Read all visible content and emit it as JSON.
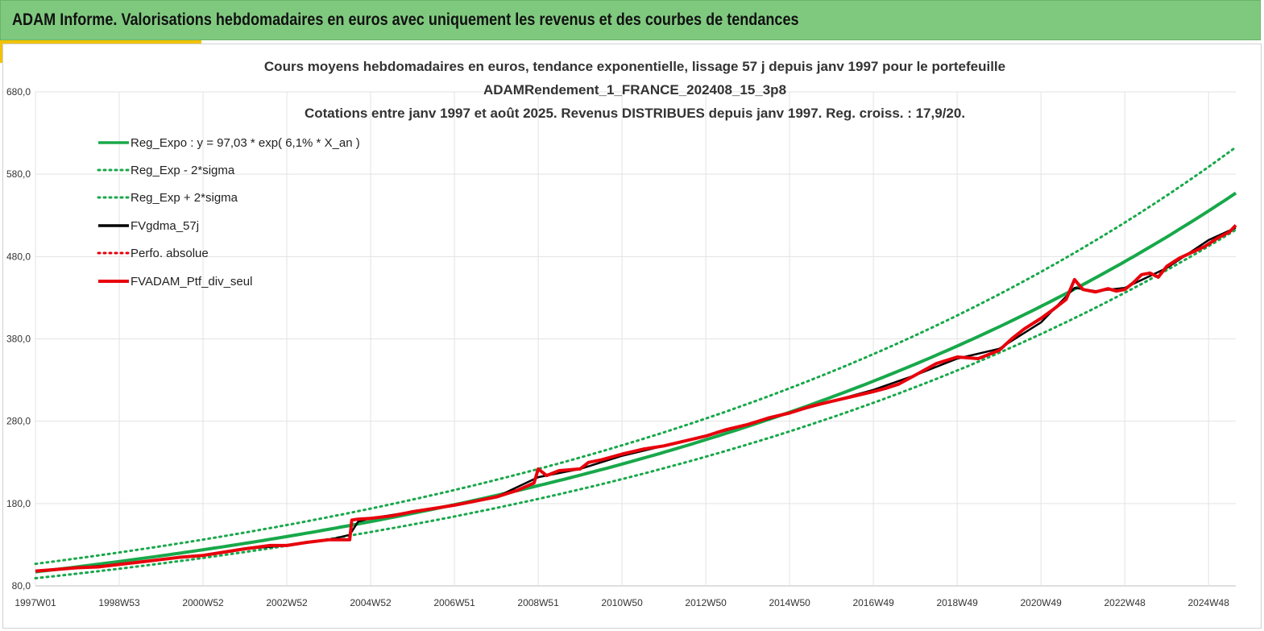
{
  "header": {
    "title": "ADAM Informe. Valorisations hebdomadaires en euros avec uniquement les revenus et des courbes de tendances"
  },
  "colors": {
    "banner": "#7fc97f",
    "accent": "#f2c200",
    "reg_green": "#18a84a",
    "black": "#000000",
    "red": "#e8000b"
  },
  "chart_data": {
    "type": "line",
    "title_lines": [
      "Cours moyens hebdomadaires  en euros, tendance exponentielle, lissage 57 j depuis janv 1997 pour le portefeuille",
      "ADAMRendement_1_FRANCE_202408_15_3p8",
      "Cotations  entre janv 1997 et août 2025. Revenus DISTRIBUES depuis janv 1997. Reg. croiss. : 17,9/20."
    ],
    "x_ticks": [
      "1997W01",
      "1998W53",
      "2000W52",
      "2002W52",
      "2004W52",
      "2006W51",
      "2008W51",
      "2010W50",
      "2012W50",
      "2014W50",
      "2016W49",
      "2018W49",
      "2020W49",
      "2022W48",
      "2024W48"
    ],
    "x_tick_years": [
      1997.0,
      1999.0,
      2001.0,
      2003.0,
      2005.0,
      2007.0,
      2009.0,
      2011.0,
      2013.0,
      2015.0,
      2017.0,
      2019.0,
      2021.0,
      2023.0,
      2025.0
    ],
    "xlim": [
      1997.0,
      2025.65
    ],
    "y_ticks": [
      "80,0",
      "180,0",
      "280,0",
      "380,0",
      "480,0",
      "580,0",
      "680,0"
    ],
    "ylim": [
      80,
      680
    ],
    "grid": true,
    "legend_position": "top-left",
    "legend": [
      {
        "label": "Reg_Expo : y = 97,03 * exp( 6,1% *  X_an )",
        "color": "#18a84a",
        "style": "solid"
      },
      {
        "label": "Reg_Exp - 2*sigma",
        "color": "#18a84a",
        "style": "dotted"
      },
      {
        "label": "Reg_Exp + 2*sigma",
        "color": "#18a84a",
        "style": "dotted"
      },
      {
        "label": "FVgdma_57j",
        "color": "#000000",
        "style": "solid"
      },
      {
        "label": "Perfo. absolue",
        "color": "#e8000b",
        "style": "dotted"
      },
      {
        "label": "FVADAM_Ptf_div_seul",
        "color": "#e8000b",
        "style": "solid-thick"
      }
    ],
    "regression": {
      "a": 97.03,
      "rate": 0.061,
      "start_year": 1997.0,
      "sigma2_low_factor": 0.92,
      "sigma2_high_factor": 1.1
    },
    "series": [
      {
        "name": "FVADAM_Ptf_div_seul",
        "x": [
          1997.0,
          1997.5,
          1998.0,
          1998.5,
          1999.0,
          1999.5,
          2000.0,
          2000.5,
          2001.0,
          2001.5,
          2002.0,
          2002.3,
          2002.6,
          2003.0,
          2003.5,
          2004.0,
          2004.5,
          2004.55,
          2004.7,
          2005.0,
          2005.5,
          2006.0,
          2006.5,
          2007.0,
          2007.5,
          2008.0,
          2008.5,
          2008.9,
          2009.0,
          2009.2,
          2009.5,
          2010.0,
          2010.2,
          2010.5,
          2011.0,
          2011.5,
          2012.0,
          2012.5,
          2013.0,
          2013.5,
          2014.0,
          2014.5,
          2015.0,
          2015.5,
          2016.0,
          2016.5,
          2017.0,
          2017.3,
          2017.6,
          2018.0,
          2018.5,
          2019.0,
          2019.5,
          2020.0,
          2020.3,
          2020.6,
          2021.0,
          2021.3,
          2021.6,
          2021.8,
          2022.0,
          2022.3,
          2022.6,
          2022.8,
          2023.0,
          2023.2,
          2023.4,
          2023.6,
          2023.8,
          2024.0,
          2024.3,
          2024.6,
          2024.9,
          2025.2,
          2025.5,
          2025.65
        ],
        "y": [
          98,
          100,
          102,
          103,
          106,
          109,
          112,
          115,
          117,
          121,
          125,
          127,
          129,
          129,
          133,
          136,
          136,
          160,
          161,
          162,
          165,
          170,
          174,
          178,
          183,
          188,
          196,
          205,
          222,
          214,
          220,
          222,
          230,
          233,
          240,
          246,
          250,
          256,
          262,
          270,
          276,
          284,
          290,
          298,
          304,
          310,
          316,
          320,
          325,
          336,
          350,
          358,
          356,
          366,
          380,
          392,
          405,
          416,
          428,
          452,
          440,
          437,
          441,
          438,
          440,
          448,
          458,
          460,
          455,
          468,
          478,
          485,
          492,
          502,
          510,
          518
        ]
      },
      {
        "name": "FVgdma_57j",
        "x": [
          1997.0,
          1998.0,
          1999.0,
          2000.0,
          2001.0,
          2002.0,
          2003.0,
          2004.0,
          2004.5,
          2004.7,
          2005.0,
          2006.0,
          2007.0,
          2008.0,
          2009.0,
          2010.0,
          2011.0,
          2012.0,
          2013.0,
          2014.0,
          2015.0,
          2016.0,
          2017.0,
          2018.0,
          2019.0,
          2020.0,
          2021.0,
          2021.8,
          2022.3,
          2023.0,
          2024.0,
          2025.0,
          2025.65
        ],
        "y": [
          98,
          102,
          106,
          112,
          117,
          125,
          129,
          136,
          142,
          158,
          162,
          170,
          178,
          188,
          212,
          222,
          238,
          250,
          262,
          276,
          290,
          304,
          318,
          336,
          356,
          368,
          400,
          442,
          438,
          442,
          466,
          500,
          515
        ]
      }
    ]
  }
}
